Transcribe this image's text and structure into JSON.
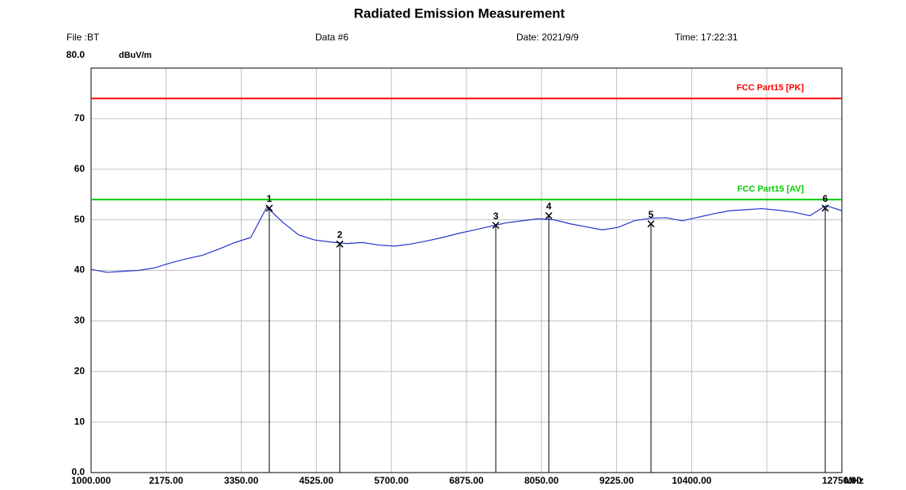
{
  "chart_data": {
    "type": "line",
    "title": "Radiated Emission Measurement",
    "header": {
      "file": "File :BT",
      "data": "Data #6",
      "date": "Date: 2021/9/9",
      "time": "Time: 17:22:31"
    },
    "y_unit": "dBuV/m",
    "x_unit": "MHz",
    "xlim": [
      1000,
      12750
    ],
    "ylim": [
      0,
      80
    ],
    "xticks": [
      {
        "value": 1000,
        "label": "1000.000"
      },
      {
        "value": 2175,
        "label": "2175.00"
      },
      {
        "value": 3350,
        "label": "3350.00"
      },
      {
        "value": 4525,
        "label": "4525.00"
      },
      {
        "value": 5700,
        "label": "5700.00"
      },
      {
        "value": 6875,
        "label": "6875.00"
      },
      {
        "value": 8050,
        "label": "8050.00"
      },
      {
        "value": 9225,
        "label": "9225.00"
      },
      {
        "value": 10400,
        "label": "10400.00"
      },
      {
        "value": 11575,
        "label": null
      },
      {
        "value": 12750,
        "label": "12750.00"
      }
    ],
    "yticks": [
      {
        "value": 0,
        "label": "0.0"
      },
      10,
      20,
      30,
      40,
      50,
      60,
      70,
      {
        "value": 80,
        "label": "80.0"
      }
    ],
    "grid": true,
    "limits": [
      {
        "name": "FCC Part15 [PK]",
        "color": "#ff0000",
        "value": 74
      },
      {
        "name": "FCC Part15 [AV]",
        "color": "#00cc00",
        "value": 54
      }
    ],
    "x": [
      1000,
      1250,
      1500,
      1750,
      2000,
      2250,
      2500,
      2750,
      3000,
      3250,
      3500,
      3750,
      4000,
      4250,
      4500,
      4750,
      5000,
      5250,
      5500,
      5750,
      6000,
      6250,
      6500,
      6750,
      7000,
      7250,
      7500,
      7750,
      8000,
      8250,
      8500,
      8750,
      9000,
      9250,
      9500,
      9750,
      10000,
      10250,
      10500,
      10750,
      11000,
      11250,
      11500,
      11750,
      12000,
      12250,
      12500,
      12750
    ],
    "series": [
      {
        "color": "#2233cc",
        "values": [
          40.2,
          39.6,
          39.8,
          40.0,
          40.5,
          41.5,
          42.3,
          43.0,
          44.2,
          45.5,
          46.5,
          52.5,
          49.5,
          47.0,
          46.0,
          45.6,
          45.3,
          45.5,
          45.0,
          44.8,
          45.2,
          45.8,
          46.5,
          47.3,
          48.0,
          48.7,
          49.4,
          49.8,
          50.2,
          50.0,
          49.2,
          48.6,
          48.0,
          48.5,
          49.8,
          50.3,
          50.4,
          49.8,
          50.5,
          51.2,
          51.8,
          52.0,
          52.2,
          51.9,
          51.5,
          50.8,
          52.8,
          51.8
        ]
      }
    ],
    "markers": {
      "labels": [
        "1",
        "2",
        "3",
        "4",
        "5",
        "6"
      ],
      "x": [
        3789,
        4892,
        7334,
        8164,
        9763,
        12490
      ],
      "values": [
        52.3,
        45.2,
        48.9,
        50.8,
        49.2,
        52.3
      ]
    }
  }
}
